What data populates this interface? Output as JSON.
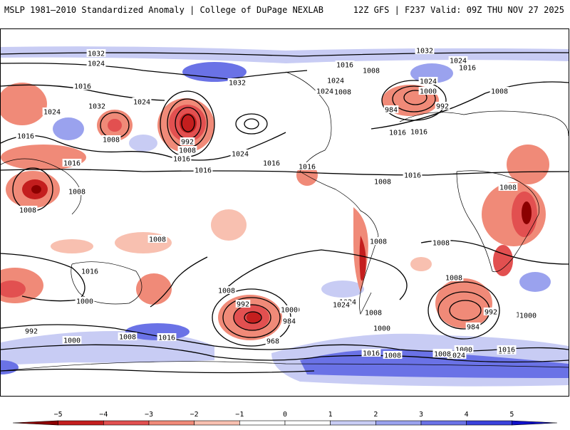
{
  "header": {
    "title_left": "MSLP 1981–2010 Standardized Anomaly | College of DuPage NEXLAB",
    "title_right": "12Z GFS | F237 Valid: 09Z THU NOV 27 2025"
  },
  "map": {
    "isobar_labels": [
      "1032",
      "1024",
      "1016",
      "1032",
      "1024",
      "1016",
      "1008",
      "1008",
      "1024",
      "992",
      "1008",
      "1016",
      "1032",
      "1024",
      "1016",
      "1008",
      "1016",
      "1024",
      "1016",
      "1008",
      "1016",
      "1008",
      "1016",
      "1008",
      "1032",
      "1024",
      "1016",
      "1024",
      "1000",
      "984",
      "992",
      "1016",
      "1008",
      "1024",
      "1016",
      "1008",
      "1008",
      "1008",
      "1008",
      "1016",
      "1000",
      "992",
      "1000",
      "992",
      "1008",
      "1016",
      "1024",
      "1000",
      "984",
      "968",
      "1016",
      "1008",
      "992",
      "1000",
      "1024",
      "1008",
      "1000",
      "1016",
      "1008",
      "1000",
      "1008",
      "1016",
      "1000",
      "1016",
      "1024",
      "1008",
      "992",
      "984",
      "1008",
      "1016",
      "1000"
    ],
    "colors": {
      "neg5": "#8b0000",
      "neg4": "#c41e1e",
      "neg3": "#e25050",
      "neg2": "#f08a78",
      "neg1": "#f8c0b0",
      "zero": "#ffffff",
      "pos1": "#c8ccf4",
      "pos2": "#9aa2ee",
      "pos3": "#6a72e6",
      "pos4": "#3a42dc",
      "pos5": "#1010c8"
    }
  },
  "colorbar": {
    "tick_labels": [
      "−5",
      "−4",
      "−3",
      "−2",
      "−1",
      "0",
      "1",
      "2",
      "3",
      "4",
      "5"
    ]
  }
}
